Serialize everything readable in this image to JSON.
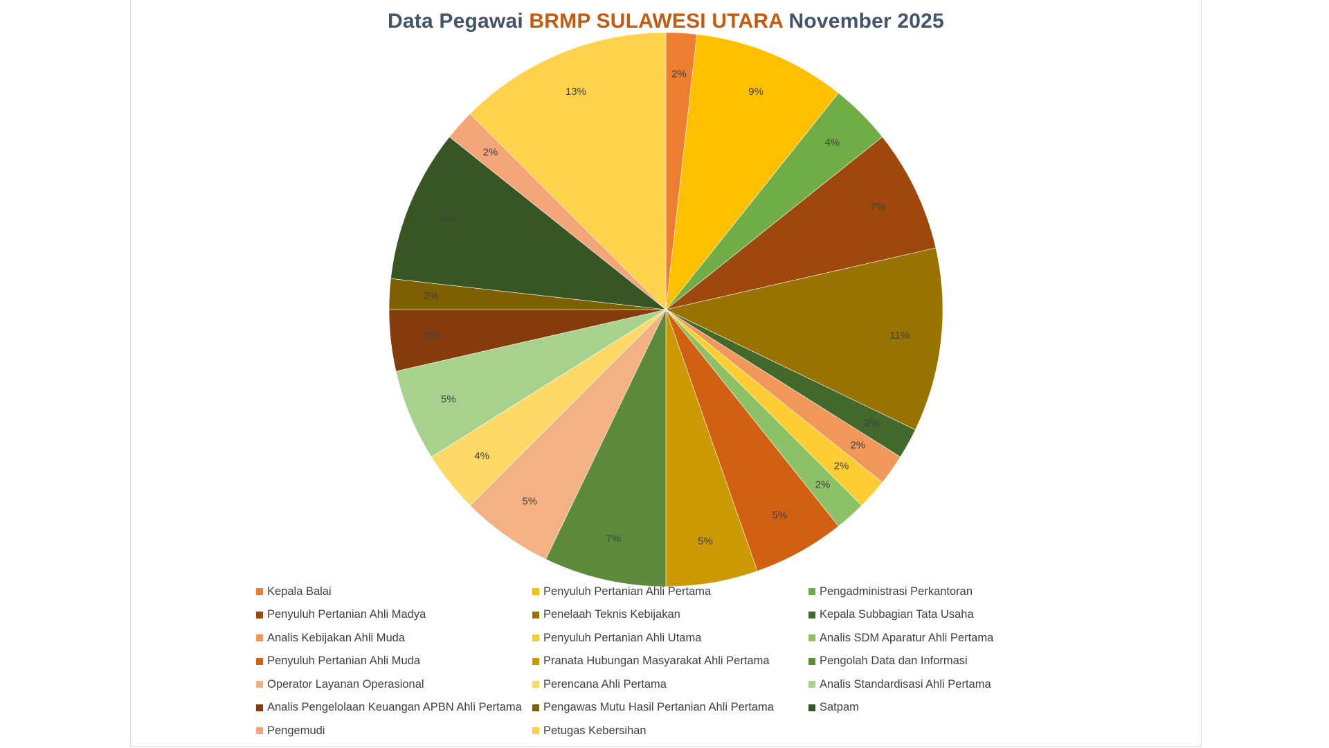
{
  "chart_data": {
    "type": "pie",
    "title": {
      "prefix": "Data Pegawai ",
      "highlight": "BRMP SULAWESI UTARA",
      "suffix": " November 2025"
    },
    "legend_position": "bottom",
    "slices": [
      {
        "name": "Kepala Balai",
        "value": 1,
        "label": "2%",
        "color": "#ed7d31"
      },
      {
        "name": "Penyuluh Pertanian Ahli Pertama",
        "value": 5,
        "label": "9%",
        "color": "#ffc000"
      },
      {
        "name": "Pengadministrasi Perkantoran",
        "value": 2,
        "label": "4%",
        "color": "#70ad47"
      },
      {
        "name": "Penyuluh Pertanian Ahli Madya",
        "value": 4,
        "label": "7%",
        "color": "#9e480e"
      },
      {
        "name": "Penelaah Teknis Kebijakan",
        "value": 6,
        "label": "11%",
        "color": "#997300"
      },
      {
        "name": "Kepala Subbagian Tata Usaha",
        "value": 1,
        "label": "2%",
        "color": "#43682b"
      },
      {
        "name": "Analis Kebijakan Ahli Muda",
        "value": 1,
        "label": "2%",
        "color": "#f1975a"
      },
      {
        "name": "Penyuluh Pertanian Ahli Utama",
        "value": 1,
        "label": "2%",
        "color": "#ffcd33"
      },
      {
        "name": "Analis SDM Aparatur Ahli Pertama",
        "value": 1,
        "label": "2%",
        "color": "#8cc168"
      },
      {
        "name": "Penyuluh Pertanian Ahli Muda",
        "value": 3,
        "label": "5%",
        "color": "#d26012"
      },
      {
        "name": "Pranata Hubungan Masyarakat Ahli Pertama",
        "value": 3,
        "label": "5%",
        "color": "#cc9a00"
      },
      {
        "name": "Pengolah Data dan Informasi",
        "value": 4,
        "label": "7%",
        "color": "#5a8a3a"
      },
      {
        "name": "Operator Layanan Operasional",
        "value": 3,
        "label": "5%",
        "color": "#f4b183"
      },
      {
        "name": "Perencana Ahli Pertama",
        "value": 2,
        "label": "4%",
        "color": "#ffd966"
      },
      {
        "name": "Analis Standardisasi Ahli Pertama",
        "value": 3,
        "label": "5%",
        "color": "#a9d18e"
      },
      {
        "name": "Analis Pengelolaan Keuangan APBN Ahli Pertama",
        "value": 2,
        "label": "4%",
        "color": "#843c0c"
      },
      {
        "name": "Pengawas Mutu Hasil Pertanian Ahli Pertama",
        "value": 1,
        "label": "2%",
        "color": "#7f6000"
      },
      {
        "name": "Satpam",
        "value": 5,
        "label": "9%",
        "color": "#375623"
      },
      {
        "name": "Pengemudi",
        "value": 1,
        "label": "2%",
        "color": "#f4a67a"
      },
      {
        "name": "Petugas Kebersihan",
        "value": 7,
        "label": "13%",
        "color": "#ffd24d"
      }
    ]
  }
}
